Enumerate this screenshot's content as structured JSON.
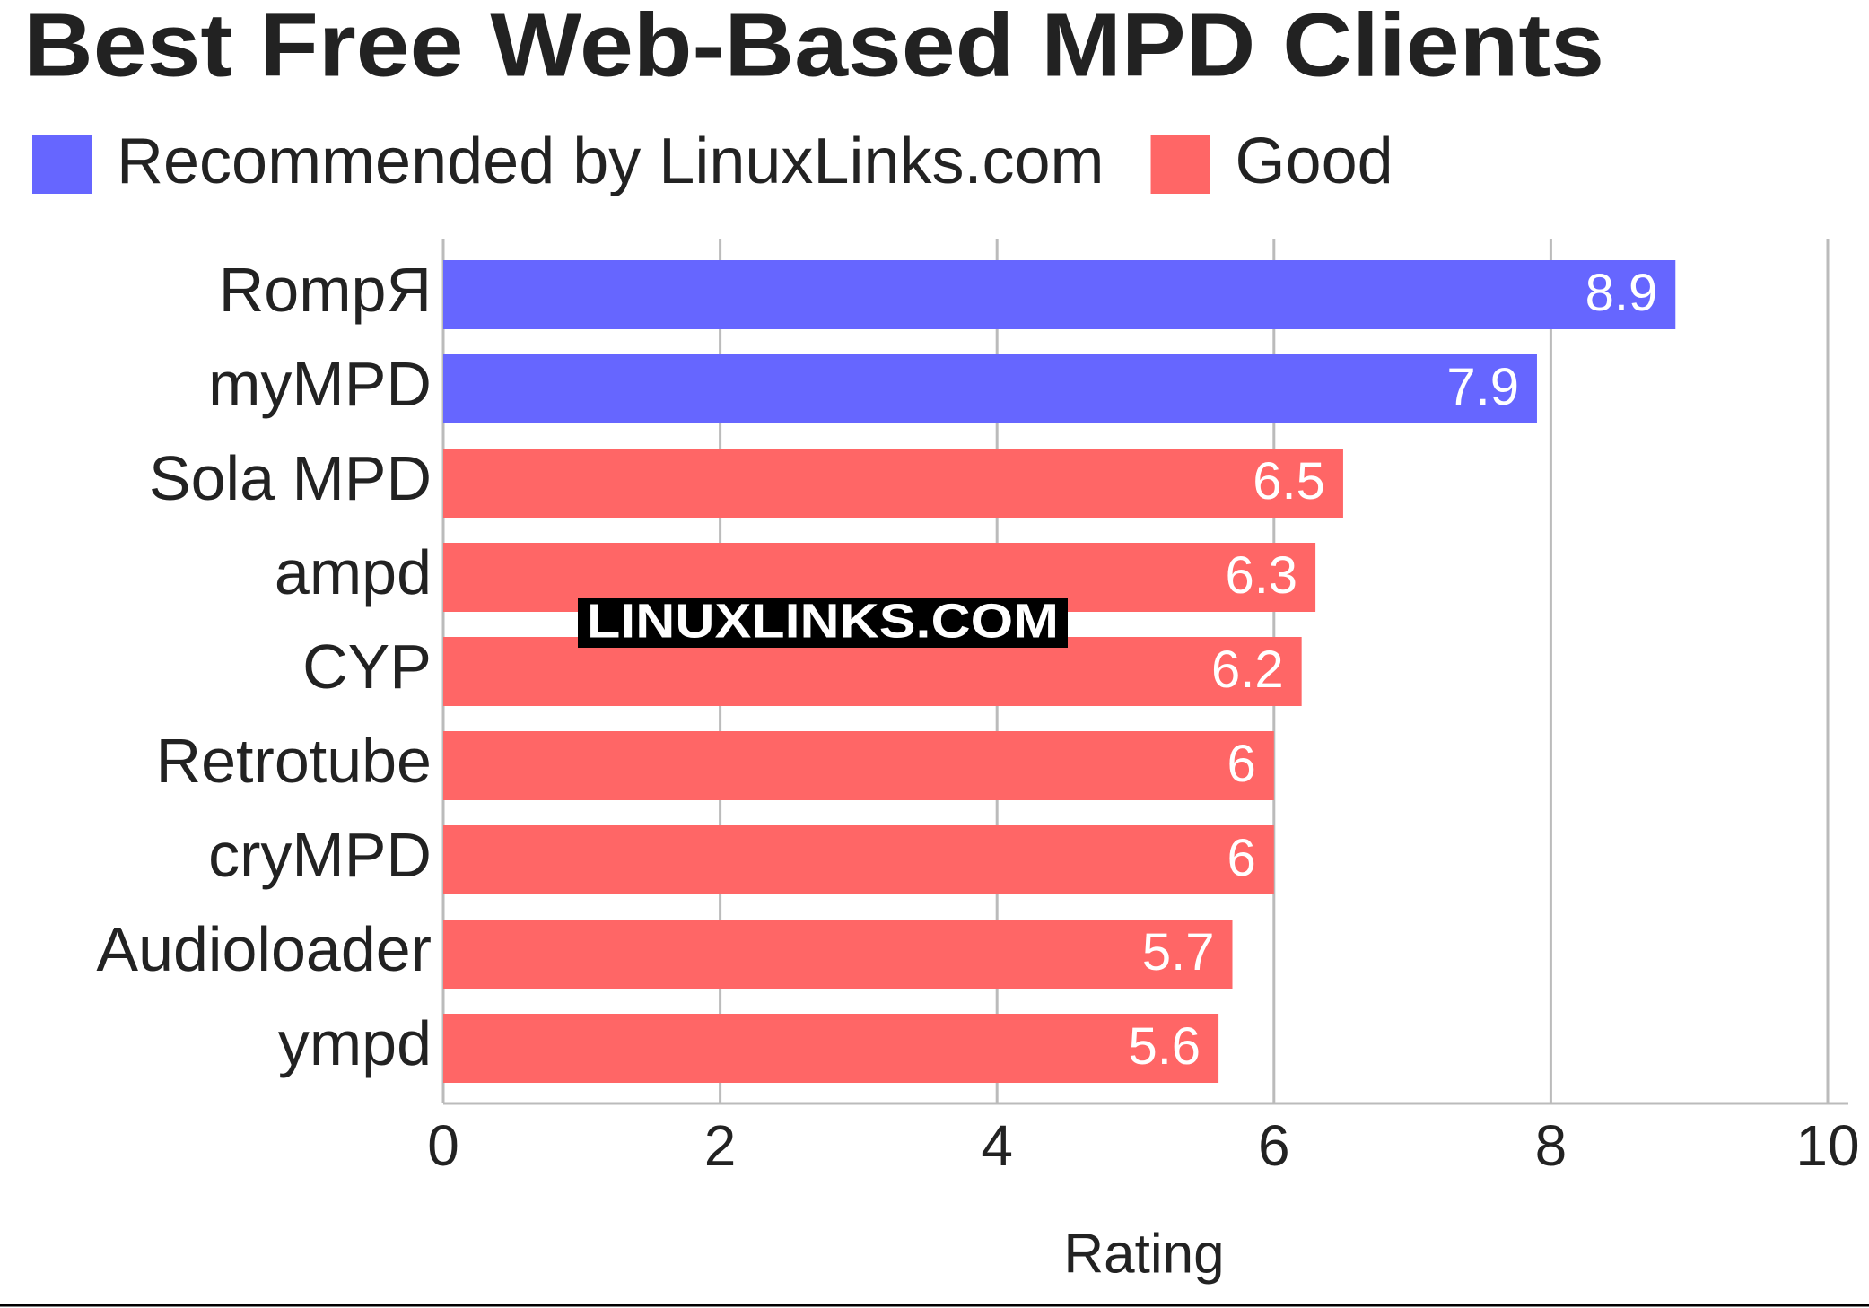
{
  "chart_data": {
    "type": "bar",
    "orientation": "horizontal",
    "title": "Best Free Web-Based MPD Clients",
    "watermark": "LINUXLINKS.COM",
    "categories": [
      "RompЯ",
      "myMPD",
      "Sola MPD",
      "ampd",
      "CYP",
      "Retrotube",
      "cryMPD",
      "Audioloader",
      "ympd"
    ],
    "series": [
      {
        "name": "Recommended by LinuxLinks.com",
        "color": "#6666ff",
        "values": [
          8.9,
          7.9,
          null,
          null,
          null,
          null,
          null,
          null,
          null
        ]
      },
      {
        "name": "Good",
        "color": "#ff6666",
        "values": [
          null,
          null,
          6.5,
          6.3,
          6.2,
          6,
          6,
          5.7,
          5.6
        ]
      }
    ],
    "xlabel": "Rating",
    "xlim": [
      0,
      10
    ],
    "xticks": [
      0,
      2,
      4,
      6,
      8,
      10
    ],
    "grid": true,
    "legend": "top-left"
  }
}
